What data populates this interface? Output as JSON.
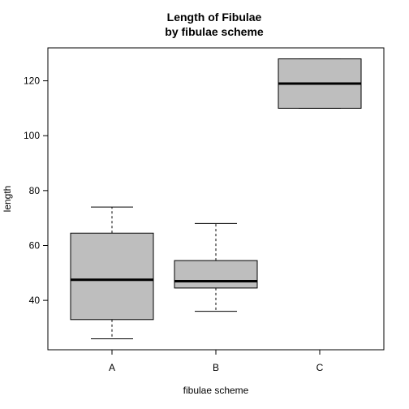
{
  "chart_data": {
    "type": "boxplot",
    "title": "Length of Fibulae",
    "subtitle": "by fibulae scheme",
    "xlabel": "fibulae scheme",
    "ylabel": "length",
    "ylim": [
      22,
      132
    ],
    "yticks": [
      40,
      60,
      80,
      100,
      120
    ],
    "grid": false,
    "box_color": "#bebebe",
    "categories": [
      "A",
      "B",
      "C"
    ],
    "boxes": [
      {
        "category": "A",
        "min": 26,
        "q1": 33,
        "median": 47.5,
        "q3": 64.5,
        "max": 74
      },
      {
        "category": "B",
        "min": 36,
        "q1": 44.5,
        "median": 47,
        "q3": 54.5,
        "max": 68
      },
      {
        "category": "C",
        "min": 110,
        "q1": 110,
        "median": 119,
        "q3": 128,
        "max": 128
      }
    ]
  }
}
